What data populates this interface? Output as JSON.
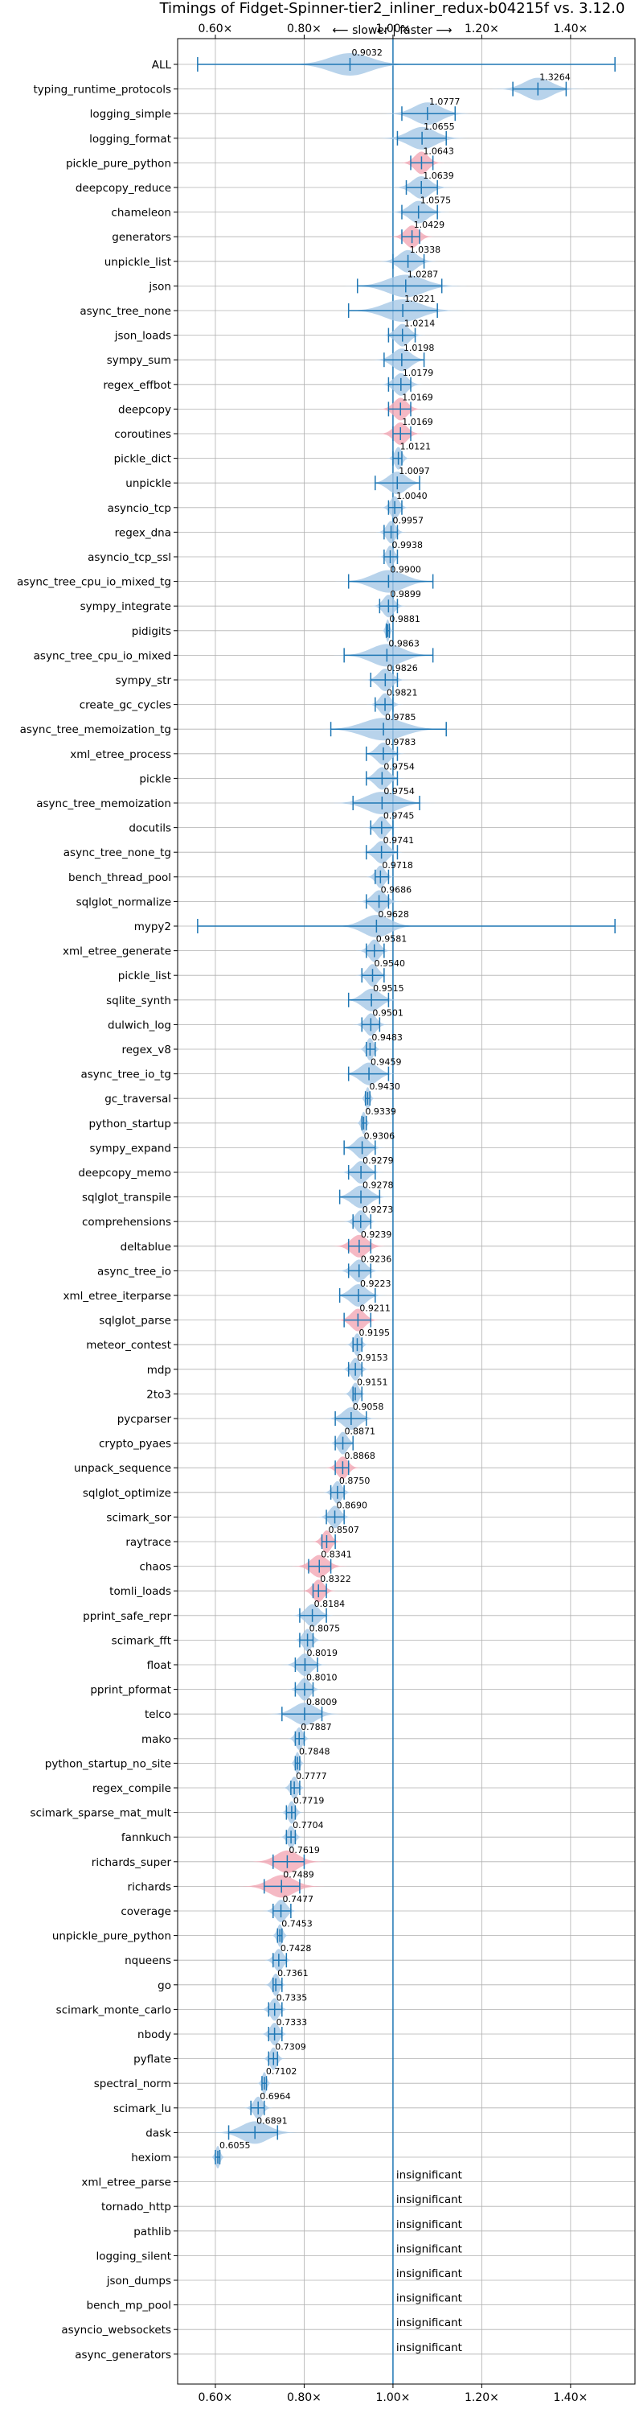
{
  "chart_data": {
    "type": "violin",
    "title": "Timings of Fidget-Spinner-tier2_inliner_redux-b04215f vs. 3.12.0",
    "direction_label": "⟵ slower | faster ⟶",
    "xlim": [
      0.515,
      1.545
    ],
    "xticks": [
      0.6,
      0.8,
      1.0,
      1.2,
      1.4
    ],
    "xtick_labels": [
      "0.60×",
      "0.80×",
      "1.00×",
      "1.20×",
      "1.40×"
    ],
    "insignificant_text": "insignificant",
    "colors": {
      "violin_normal": "#a6c8e6",
      "violin_highlight": "#f3a7b5",
      "line": "#1f77b4",
      "ref_line": "#1f77b4",
      "grid": "#b0b0b0"
    },
    "benchmarks": [
      {
        "name": "ALL",
        "value": "0.9032",
        "mean": 0.9032,
        "min": 0.56,
        "max": 1.5,
        "spread": 0.045,
        "highlight": false
      },
      {
        "name": "typing_runtime_protocols",
        "value": "1.3264",
        "mean": 1.3264,
        "min": 1.27,
        "max": 1.39,
        "spread": 0.03,
        "highlight": false
      },
      {
        "name": "logging_simple",
        "value": "1.0777",
        "mean": 1.0777,
        "min": 1.02,
        "max": 1.14,
        "spread": 0.03,
        "highlight": false
      },
      {
        "name": "logging_format",
        "value": "1.0655",
        "mean": 1.0655,
        "min": 1.01,
        "max": 1.12,
        "spread": 0.03,
        "highlight": false
      },
      {
        "name": "pickle_pure_python",
        "value": "1.0643",
        "mean": 1.0643,
        "min": 1.04,
        "max": 1.09,
        "spread": 0.015,
        "highlight": true
      },
      {
        "name": "deepcopy_reduce",
        "value": "1.0639",
        "mean": 1.0639,
        "min": 1.03,
        "max": 1.1,
        "spread": 0.02,
        "highlight": false
      },
      {
        "name": "chameleon",
        "value": "1.0575",
        "mean": 1.0575,
        "min": 1.02,
        "max": 1.1,
        "spread": 0.02,
        "highlight": false
      },
      {
        "name": "generators",
        "value": "1.0429",
        "mean": 1.0429,
        "min": 1.02,
        "max": 1.06,
        "spread": 0.015,
        "highlight": true
      },
      {
        "name": "unpickle_list",
        "value": "1.0338",
        "mean": 1.0338,
        "min": 1.0,
        "max": 1.07,
        "spread": 0.02,
        "highlight": false
      },
      {
        "name": "json",
        "value": "1.0287",
        "mean": 1.0287,
        "min": 0.92,
        "max": 1.11,
        "spread": 0.04,
        "highlight": false
      },
      {
        "name": "async_tree_none",
        "value": "1.0221",
        "mean": 1.0221,
        "min": 0.9,
        "max": 1.1,
        "spread": 0.04,
        "highlight": false
      },
      {
        "name": "json_loads",
        "value": "1.0214",
        "mean": 1.0214,
        "min": 0.99,
        "max": 1.05,
        "spread": 0.015,
        "highlight": false
      },
      {
        "name": "sympy_sum",
        "value": "1.0198",
        "mean": 1.0198,
        "min": 0.98,
        "max": 1.07,
        "spread": 0.02,
        "highlight": false
      },
      {
        "name": "regex_effbot",
        "value": "1.0179",
        "mean": 1.0179,
        "min": 0.99,
        "max": 1.04,
        "spread": 0.015,
        "highlight": false
      },
      {
        "name": "deepcopy",
        "value": "1.0169",
        "mean": 1.0169,
        "min": 0.99,
        "max": 1.04,
        "spread": 0.015,
        "highlight": true
      },
      {
        "name": "coroutines",
        "value": "1.0169",
        "mean": 1.0169,
        "min": 1.0,
        "max": 1.04,
        "spread": 0.015,
        "highlight": true
      },
      {
        "name": "pickle_dict",
        "value": "1.0121",
        "mean": 1.0121,
        "min": 1.0,
        "max": 1.02,
        "spread": 0.008,
        "highlight": false
      },
      {
        "name": "unpickle",
        "value": "1.0097",
        "mean": 1.0097,
        "min": 0.96,
        "max": 1.06,
        "spread": 0.02,
        "highlight": false
      },
      {
        "name": "asyncio_tcp",
        "value": "1.0040",
        "mean": 1.004,
        "min": 0.99,
        "max": 1.02,
        "spread": 0.01,
        "highlight": false
      },
      {
        "name": "regex_dna",
        "value": "0.9957",
        "mean": 0.9957,
        "min": 0.98,
        "max": 1.01,
        "spread": 0.01,
        "highlight": false
      },
      {
        "name": "asyncio_tcp_ssl",
        "value": "0.9938",
        "mean": 0.9938,
        "min": 0.98,
        "max": 1.01,
        "spread": 0.008,
        "highlight": false
      },
      {
        "name": "async_tree_cpu_io_mixed_tg",
        "value": "0.9900",
        "mean": 0.99,
        "min": 0.9,
        "max": 1.09,
        "spread": 0.035,
        "highlight": false
      },
      {
        "name": "sympy_integrate",
        "value": "0.9899",
        "mean": 0.9899,
        "min": 0.97,
        "max": 1.01,
        "spread": 0.012,
        "highlight": false
      },
      {
        "name": "pidigits",
        "value": "0.9881",
        "mean": 0.9881,
        "min": 0.985,
        "max": 0.992,
        "spread": 0.004,
        "highlight": false
      },
      {
        "name": "async_tree_cpu_io_mixed",
        "value": "0.9863",
        "mean": 0.9863,
        "min": 0.89,
        "max": 1.09,
        "spread": 0.035,
        "highlight": false
      },
      {
        "name": "sympy_str",
        "value": "0.9826",
        "mean": 0.9826,
        "min": 0.95,
        "max": 1.01,
        "spread": 0.015,
        "highlight": false
      },
      {
        "name": "create_gc_cycles",
        "value": "0.9821",
        "mean": 0.9821,
        "min": 0.96,
        "max": 1.0,
        "spread": 0.012,
        "highlight": false
      },
      {
        "name": "async_tree_memoization_tg",
        "value": "0.9785",
        "mean": 0.9785,
        "min": 0.86,
        "max": 1.12,
        "spread": 0.045,
        "highlight": false
      },
      {
        "name": "xml_etree_process",
        "value": "0.9783",
        "mean": 0.9783,
        "min": 0.94,
        "max": 1.01,
        "spread": 0.015,
        "highlight": false
      },
      {
        "name": "pickle",
        "value": "0.9754",
        "mean": 0.9754,
        "min": 0.94,
        "max": 1.01,
        "spread": 0.015,
        "highlight": false
      },
      {
        "name": "async_tree_memoization",
        "value": "0.9754",
        "mean": 0.9754,
        "min": 0.91,
        "max": 1.06,
        "spread": 0.035,
        "highlight": false
      },
      {
        "name": "docutils",
        "value": "0.9745",
        "mean": 0.9745,
        "min": 0.95,
        "max": 1.0,
        "spread": 0.012,
        "highlight": false
      },
      {
        "name": "async_tree_none_tg",
        "value": "0.9741",
        "mean": 0.9741,
        "min": 0.94,
        "max": 1.01,
        "spread": 0.015,
        "highlight": false
      },
      {
        "name": "bench_thread_pool",
        "value": "0.9718",
        "mean": 0.9718,
        "min": 0.96,
        "max": 0.99,
        "spread": 0.01,
        "highlight": false
      },
      {
        "name": "sqlglot_normalize",
        "value": "0.9686",
        "mean": 0.9686,
        "min": 0.94,
        "max": 0.99,
        "spread": 0.015,
        "highlight": false
      },
      {
        "name": "mypy2",
        "value": "0.9628",
        "mean": 0.9628,
        "min": 0.56,
        "max": 1.5,
        "spread": 0.03,
        "highlight": false
      },
      {
        "name": "xml_etree_generate",
        "value": "0.9581",
        "mean": 0.9581,
        "min": 0.94,
        "max": 0.98,
        "spread": 0.012,
        "highlight": false
      },
      {
        "name": "pickle_list",
        "value": "0.9540",
        "mean": 0.954,
        "min": 0.93,
        "max": 0.98,
        "spread": 0.012,
        "highlight": false
      },
      {
        "name": "sqlite_synth",
        "value": "0.9515",
        "mean": 0.9515,
        "min": 0.9,
        "max": 0.99,
        "spread": 0.02,
        "highlight": false
      },
      {
        "name": "dulwich_log",
        "value": "0.9501",
        "mean": 0.9501,
        "min": 0.93,
        "max": 0.97,
        "spread": 0.012,
        "highlight": false
      },
      {
        "name": "regex_v8",
        "value": "0.9483",
        "mean": 0.9483,
        "min": 0.94,
        "max": 0.96,
        "spread": 0.008,
        "highlight": false
      },
      {
        "name": "async_tree_io_tg",
        "value": "0.9459",
        "mean": 0.9459,
        "min": 0.9,
        "max": 0.99,
        "spread": 0.02,
        "highlight": false
      },
      {
        "name": "gc_traversal",
        "value": "0.9430",
        "mean": 0.943,
        "min": 0.938,
        "max": 0.948,
        "spread": 0.005,
        "highlight": false
      },
      {
        "name": "python_startup",
        "value": "0.9339",
        "mean": 0.9339,
        "min": 0.93,
        "max": 0.94,
        "spread": 0.005,
        "highlight": false
      },
      {
        "name": "sympy_expand",
        "value": "0.9306",
        "mean": 0.9306,
        "min": 0.89,
        "max": 0.96,
        "spread": 0.015,
        "highlight": false
      },
      {
        "name": "deepcopy_memo",
        "value": "0.9279",
        "mean": 0.9279,
        "min": 0.9,
        "max": 0.96,
        "spread": 0.015,
        "highlight": false
      },
      {
        "name": "sqlglot_transpile",
        "value": "0.9278",
        "mean": 0.9278,
        "min": 0.88,
        "max": 0.97,
        "spread": 0.02,
        "highlight": false
      },
      {
        "name": "comprehensions",
        "value": "0.9273",
        "mean": 0.9273,
        "min": 0.91,
        "max": 0.95,
        "spread": 0.012,
        "highlight": false
      },
      {
        "name": "deltablue",
        "value": "0.9239",
        "mean": 0.9239,
        "min": 0.9,
        "max": 0.95,
        "spread": 0.018,
        "highlight": true
      },
      {
        "name": "async_tree_io",
        "value": "0.9236",
        "mean": 0.9236,
        "min": 0.9,
        "max": 0.95,
        "spread": 0.015,
        "highlight": false
      },
      {
        "name": "xml_etree_iterparse",
        "value": "0.9223",
        "mean": 0.9223,
        "min": 0.88,
        "max": 0.96,
        "spread": 0.018,
        "highlight": false
      },
      {
        "name": "sqlglot_parse",
        "value": "0.9211",
        "mean": 0.9211,
        "min": 0.89,
        "max": 0.95,
        "spread": 0.015,
        "highlight": true
      },
      {
        "name": "meteor_contest",
        "value": "0.9195",
        "mean": 0.9195,
        "min": 0.91,
        "max": 0.93,
        "spread": 0.008,
        "highlight": false
      },
      {
        "name": "mdp",
        "value": "0.9153",
        "mean": 0.9153,
        "min": 0.9,
        "max": 0.93,
        "spread": 0.01,
        "highlight": false
      },
      {
        "name": "2to3",
        "value": "0.9151",
        "mean": 0.9151,
        "min": 0.91,
        "max": 0.93,
        "spread": 0.008,
        "highlight": false
      },
      {
        "name": "pycparser",
        "value": "0.9058",
        "mean": 0.9058,
        "min": 0.87,
        "max": 0.94,
        "spread": 0.018,
        "highlight": false
      },
      {
        "name": "crypto_pyaes",
        "value": "0.8871",
        "mean": 0.8871,
        "min": 0.87,
        "max": 0.91,
        "spread": 0.01,
        "highlight": false
      },
      {
        "name": "unpack_sequence",
        "value": "0.8868",
        "mean": 0.8868,
        "min": 0.87,
        "max": 0.9,
        "spread": 0.012,
        "highlight": true
      },
      {
        "name": "sqlglot_optimize",
        "value": "0.8750",
        "mean": 0.875,
        "min": 0.86,
        "max": 0.89,
        "spread": 0.01,
        "highlight": false
      },
      {
        "name": "scimark_sor",
        "value": "0.8690",
        "mean": 0.869,
        "min": 0.85,
        "max": 0.89,
        "spread": 0.012,
        "highlight": false
      },
      {
        "name": "raytrace",
        "value": "0.8507",
        "mean": 0.8507,
        "min": 0.84,
        "max": 0.87,
        "spread": 0.01,
        "highlight": true
      },
      {
        "name": "chaos",
        "value": "0.8341",
        "mean": 0.8341,
        "min": 0.81,
        "max": 0.86,
        "spread": 0.018,
        "highlight": true
      },
      {
        "name": "tomli_loads",
        "value": "0.8322",
        "mean": 0.8322,
        "min": 0.82,
        "max": 0.85,
        "spread": 0.012,
        "highlight": true
      },
      {
        "name": "pprint_safe_repr",
        "value": "0.8184",
        "mean": 0.8184,
        "min": 0.79,
        "max": 0.85,
        "spread": 0.015,
        "highlight": false
      },
      {
        "name": "scimark_fft",
        "value": "0.8075",
        "mean": 0.8075,
        "min": 0.79,
        "max": 0.82,
        "spread": 0.01,
        "highlight": false
      },
      {
        "name": "float",
        "value": "0.8019",
        "mean": 0.8019,
        "min": 0.78,
        "max": 0.83,
        "spread": 0.015,
        "highlight": false
      },
      {
        "name": "pprint_pformat",
        "value": "0.8010",
        "mean": 0.801,
        "min": 0.78,
        "max": 0.82,
        "spread": 0.012,
        "highlight": false
      },
      {
        "name": "telco",
        "value": "0.8009",
        "mean": 0.8009,
        "min": 0.75,
        "max": 0.84,
        "spread": 0.025,
        "highlight": false
      },
      {
        "name": "mako",
        "value": "0.7887",
        "mean": 0.7887,
        "min": 0.78,
        "max": 0.8,
        "spread": 0.008,
        "highlight": false
      },
      {
        "name": "python_startup_no_site",
        "value": "0.7848",
        "mean": 0.7848,
        "min": 0.78,
        "max": 0.79,
        "spread": 0.005,
        "highlight": false
      },
      {
        "name": "regex_compile",
        "value": "0.7777",
        "mean": 0.7777,
        "min": 0.77,
        "max": 0.79,
        "spread": 0.008,
        "highlight": false
      },
      {
        "name": "scimark_sparse_mat_mult",
        "value": "0.7719",
        "mean": 0.7719,
        "min": 0.76,
        "max": 0.78,
        "spread": 0.008,
        "highlight": false
      },
      {
        "name": "fannkuch",
        "value": "0.7704",
        "mean": 0.7704,
        "min": 0.76,
        "max": 0.78,
        "spread": 0.008,
        "highlight": false
      },
      {
        "name": "richards_super",
        "value": "0.7619",
        "mean": 0.7619,
        "min": 0.73,
        "max": 0.8,
        "spread": 0.025,
        "highlight": true
      },
      {
        "name": "richards",
        "value": "0.7489",
        "mean": 0.7489,
        "min": 0.71,
        "max": 0.79,
        "spread": 0.028,
        "highlight": true
      },
      {
        "name": "coverage",
        "value": "0.7477",
        "mean": 0.7477,
        "min": 0.73,
        "max": 0.77,
        "spread": 0.012,
        "highlight": false
      },
      {
        "name": "unpickle_pure_python",
        "value": "0.7453",
        "mean": 0.7453,
        "min": 0.74,
        "max": 0.75,
        "spread": 0.006,
        "highlight": false
      },
      {
        "name": "nqueens",
        "value": "0.7428",
        "mean": 0.7428,
        "min": 0.73,
        "max": 0.76,
        "spread": 0.01,
        "highlight": false
      },
      {
        "name": "go",
        "value": "0.7361",
        "mean": 0.7361,
        "min": 0.73,
        "max": 0.75,
        "spread": 0.008,
        "highlight": false
      },
      {
        "name": "scimark_monte_carlo",
        "value": "0.7335",
        "mean": 0.7335,
        "min": 0.72,
        "max": 0.75,
        "spread": 0.01,
        "highlight": false
      },
      {
        "name": "nbody",
        "value": "0.7333",
        "mean": 0.7333,
        "min": 0.72,
        "max": 0.75,
        "spread": 0.01,
        "highlight": false
      },
      {
        "name": "pyflate",
        "value": "0.7309",
        "mean": 0.7309,
        "min": 0.72,
        "max": 0.74,
        "spread": 0.008,
        "highlight": false
      },
      {
        "name": "spectral_norm",
        "value": "0.7102",
        "mean": 0.7102,
        "min": 0.705,
        "max": 0.715,
        "spread": 0.005,
        "highlight": false
      },
      {
        "name": "scimark_lu",
        "value": "0.6964",
        "mean": 0.6964,
        "min": 0.68,
        "max": 0.71,
        "spread": 0.01,
        "highlight": false
      },
      {
        "name": "dask",
        "value": "0.6891",
        "mean": 0.6891,
        "min": 0.63,
        "max": 0.74,
        "spread": 0.03,
        "highlight": false
      },
      {
        "name": "hexiom",
        "value": "0.6055",
        "mean": 0.6055,
        "min": 0.6,
        "max": 0.61,
        "spread": 0.005,
        "highlight": false
      },
      {
        "name": "xml_etree_parse",
        "value": null,
        "insignificant": true
      },
      {
        "name": "tornado_http",
        "value": null,
        "insignificant": true
      },
      {
        "name": "pathlib",
        "value": null,
        "insignificant": true
      },
      {
        "name": "logging_silent",
        "value": null,
        "insignificant": true
      },
      {
        "name": "json_dumps",
        "value": null,
        "insignificant": true
      },
      {
        "name": "bench_mp_pool",
        "value": null,
        "insignificant": true
      },
      {
        "name": "asyncio_websockets",
        "value": null,
        "insignificant": true
      },
      {
        "name": "async_generators",
        "value": null,
        "insignificant": true
      }
    ]
  }
}
